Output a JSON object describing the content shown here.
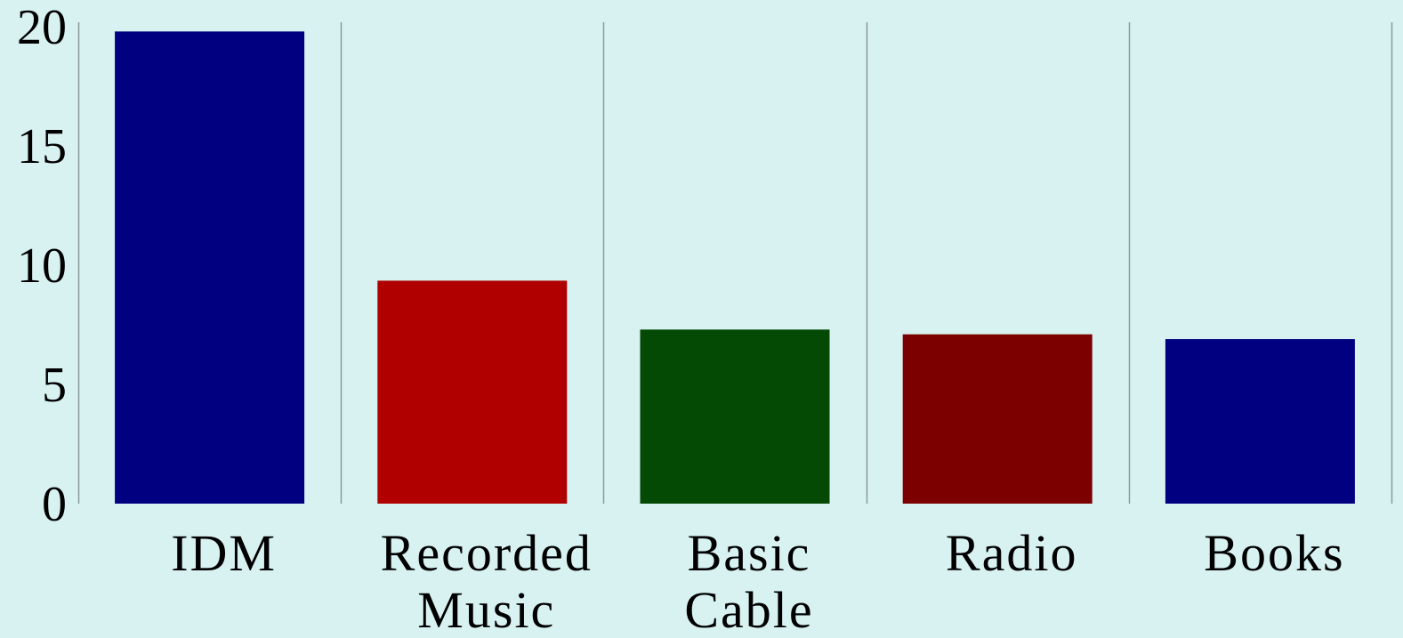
{
  "chart_data": {
    "type": "bar",
    "title": "",
    "xlabel": "",
    "ylabel": "",
    "categories": [
      [
        "IDM"
      ],
      [
        "Recorded",
        "Music"
      ],
      [
        "Basic",
        "Cable"
      ],
      [
        "Radio"
      ],
      [
        "Books"
      ]
    ],
    "values": [
      19.8,
      9.35,
      7.3,
      7.1,
      6.9
    ],
    "colors": [
      "#000080",
      "#b00000",
      "#044a04",
      "#7d0000",
      "#000080"
    ],
    "ylim": [
      0,
      20
    ],
    "yticks": [
      0,
      5,
      10,
      15,
      20
    ],
    "grid": "vertical separators between categories",
    "background": "#d8f2f2",
    "separator_color": "#8a9a9a"
  }
}
